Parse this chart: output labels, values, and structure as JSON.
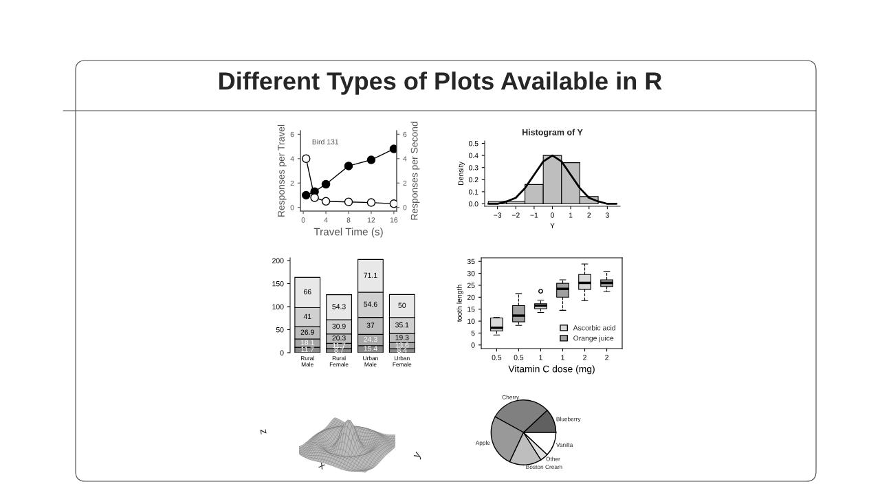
{
  "chart_data": [
    {
      "type": "other",
      "title": "Different Types of Plots Available in R"
    },
    {
      "type": "line",
      "x": [
        0.5,
        2,
        4,
        8,
        12,
        16
      ],
      "xlabel": "Travel Time (s)",
      "ylabel": "Responses per Travel",
      "y2label": "Responses per Second",
      "marker": "circle",
      "line_style": "solid",
      "xlim": [
        -0.5,
        16.5
      ],
      "xticks": [
        0,
        4,
        8,
        12,
        16
      ],
      "ylim": [
        -0.3,
        6.3
      ],
      "yticks": [
        0,
        2,
        4,
        6
      ],
      "y2lim": [
        -0.3,
        6.3
      ],
      "y2ticks": [
        0,
        2,
        4,
        6
      ],
      "annotations": [
        "Bird 131"
      ],
      "series": [
        {
          "color": "#000000",
          "values": [
            1.0,
            1.3,
            1.9,
            3.4,
            3.9,
            4.8
          ]
        },
        {
          "color": "#ffffff",
          "axis": "y2",
          "values": [
            4.0,
            0.8,
            0.5,
            0.45,
            0.4,
            0.3
          ]
        }
      ]
    },
    {
      "type": "histogram",
      "title": "Histogram of Y",
      "xlabel": "Y",
      "ylabel": "Density",
      "color": "#bebebe",
      "bins": [
        -3.5,
        -2.5,
        -1.5,
        -0.5,
        0.5,
        1.5,
        2.5
      ],
      "values": [
        0.02,
        0.02,
        0.16,
        0.4,
        0.34,
        0.06
      ],
      "xlim": [
        -3.7,
        3.7
      ],
      "xticks": [
        {
          "value": -3,
          "label": "−3"
        },
        {
          "value": -2,
          "label": "−2"
        },
        {
          "value": -1,
          "label": "−1"
        },
        0,
        1,
        2,
        3
      ],
      "ylim": [
        -0.02,
        0.52
      ],
      "yticks": [
        {
          "value": 0,
          "label": "0.0"
        },
        0.1,
        0.2,
        0.3,
        0.4,
        0.5
      ],
      "series": [
        {
          "type": "line",
          "color": "#000000",
          "x": [
            -3.5,
            -3,
            -2.5,
            -2,
            -1.5,
            -1,
            -0.5,
            0,
            0.5,
            1,
            1.5,
            2,
            2.5,
            3,
            3.5
          ],
          "values": [
            0.0,
            0.0,
            0.02,
            0.05,
            0.13,
            0.24,
            0.35,
            0.4,
            0.35,
            0.24,
            0.13,
            0.05,
            0.02,
            0.0,
            0.0
          ]
        }
      ]
    },
    {
      "type": "bar",
      "stacked": true,
      "data_labels": true,
      "categories": [
        "Rural\nMale",
        "Rural\nFemale",
        "Urban\nMale",
        "Urban\nFemale"
      ],
      "ylim": [
        0,
        206
      ],
      "yticks": [
        0,
        50,
        100,
        150,
        200
      ],
      "series": [
        {
          "color": "#8a8a8a",
          "values": [
            11.7,
            8.7,
            15.4,
            8.4
          ]
        },
        {
          "color": "#a8a8a8",
          "values": [
            18.1,
            11.7,
            24.3,
            13.6
          ]
        },
        {
          "color": "#bcbcbc",
          "values": [
            26.9,
            20.3,
            37,
            19.3
          ]
        },
        {
          "color": "#d0d0d0",
          "values": [
            41,
            30.9,
            54.6,
            35.1
          ]
        },
        {
          "color": "#e8e8e8",
          "values": [
            66,
            54.3,
            71.1,
            50
          ]
        }
      ]
    },
    {
      "type": "box",
      "categories": [
        "0.5",
        "0.5",
        "1",
        "1",
        "2",
        "2"
      ],
      "xlabel": "Vitamin C dose (mg)",
      "ylabel": "tooth length",
      "legend": "bottom right",
      "line_style": "dashed",
      "ylim": [
        -1.5,
        36.5
      ],
      "yticks": [
        0,
        5,
        10,
        15,
        20,
        25,
        30,
        35
      ],
      "series": [
        {
          "name": "Ascorbic acid",
          "color": "#d9d9d9",
          "boxes": [
            {
              "low": 4.2,
              "q1": 5.9,
              "median": 7.2,
              "q3": 11.3,
              "high": 11.5
            },
            null,
            {
              "low": 13.6,
              "q1": 15.2,
              "median": 16.5,
              "q3": 17.3,
              "high": 18.8,
              "outliers": [
                22.5
              ]
            },
            null,
            {
              "low": 18.5,
              "q1": 23.3,
              "median": 26.0,
              "q3": 29.5,
              "high": 33.9
            },
            null
          ]
        },
        {
          "name": "Orange juice",
          "color": "#a0a0a0",
          "boxes": [
            null,
            {
              "low": 8.2,
              "q1": 9.7,
              "median": 12.3,
              "q3": 16.5,
              "high": 21.5
            },
            null,
            {
              "low": 14.5,
              "q1": 20.0,
              "median": 23.5,
              "q3": 25.8,
              "high": 27.3
            },
            null,
            {
              "low": 22.4,
              "q1": 24.5,
              "median": 26.0,
              "q3": 27.3,
              "high": 30.9
            }
          ]
        }
      ]
    },
    {
      "type": "other",
      "xlabel": "x",
      "ylabel": "y",
      "annotations": [
        "z"
      ]
    },
    {
      "type": "pie",
      "categories": [
        "Blueberry",
        "Cherry",
        "Apple",
        "Boston Cream",
        "Other",
        "Vanilla"
      ],
      "values": [
        12,
        30,
        26,
        16,
        4,
        12
      ],
      "colors": [
        "#606060",
        "#808080",
        "#999999",
        "#bebebe",
        "#e0e0e0",
        "#ffffff"
      ]
    }
  ]
}
